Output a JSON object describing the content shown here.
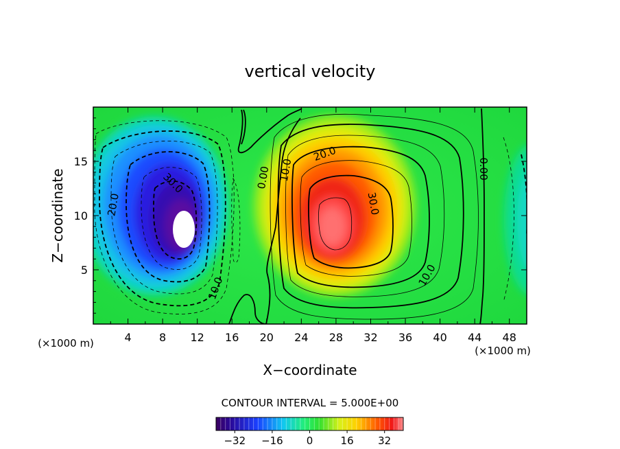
{
  "chart_data": {
    "type": "heatmap",
    "title": "vertical velocity",
    "xlabel": "X−coordinate",
    "ylabel": "Z−coordinate",
    "x_unit_left": "(×1000 m)",
    "x_unit_right": "(×1000 m)",
    "xlim": [
      0,
      50
    ],
    "ylim": [
      0,
      20
    ],
    "x_ticks": [
      4,
      8,
      12,
      16,
      20,
      24,
      28,
      32,
      36,
      40,
      44,
      48
    ],
    "y_ticks": [
      5,
      10,
      15
    ],
    "contour_interval_text": "CONTOUR INTERVAL = 5.000E+00",
    "colorbar": {
      "range": [
        -40,
        40
      ],
      "ticks": [
        -32,
        -16,
        0,
        16,
        32
      ],
      "tick_labels": [
        "−32",
        "−16",
        "0",
        "16",
        "32"
      ]
    },
    "features": [
      {
        "kind": "downdraft",
        "center": [
          10,
          9.5
        ],
        "peak": -40
      },
      {
        "kind": "updraft",
        "center": [
          27.5,
          9
        ],
        "peak": 37
      },
      {
        "kind": "downdraft-weak",
        "center": [
          49,
          9
        ],
        "peak": -8
      }
    ],
    "contour_labels": [
      {
        "text": "30.0",
        "x": 9.2,
        "y": 13.0,
        "angle": 45
      },
      {
        "text": "20.0",
        "x": 2.3,
        "y": 11.0,
        "angle": -80
      },
      {
        "text": "10.0",
        "x": 14.1,
        "y": 3.3,
        "angle": -70
      },
      {
        "text": "0.00",
        "x": 19.6,
        "y": 13.5,
        "angle": -80
      },
      {
        "text": "10.0",
        "x": 22.2,
        "y": 14.2,
        "angle": -80
      },
      {
        "text": "20.0",
        "x": 26.7,
        "y": 15.7,
        "angle": -20
      },
      {
        "text": "30.0",
        "x": 32.3,
        "y": 11.1,
        "angle": 80
      },
      {
        "text": "10.0",
        "x": 38.5,
        "y": 4.5,
        "angle": -60
      },
      {
        "text": "0.00",
        "x": 45.0,
        "y": 14.3,
        "angle": 90
      }
    ]
  }
}
